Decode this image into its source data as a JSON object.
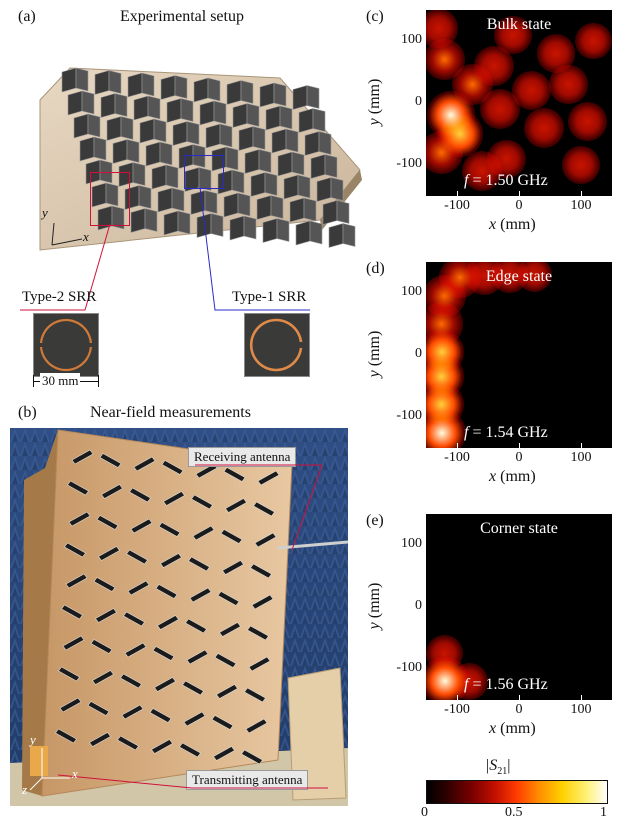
{
  "panel_a": {
    "label": "(a)",
    "title": "Experimental setup",
    "axis_y": "y",
    "axis_x": "x",
    "type2": {
      "label": "Type-2 SRR",
      "scale": "30 mm"
    },
    "type1": {
      "label": "Type-1 SRR"
    }
  },
  "panel_b": {
    "label": "(b)",
    "title": "Near-field measurements",
    "receiving": "Receiving antenna",
    "transmitting": "Transmitting antenna",
    "axis_y": "y",
    "axis_x": "x",
    "axis_z": "z"
  },
  "maps": [
    {
      "label": "(c)",
      "title": "Bulk state",
      "freq": "f = 1.50 GHz"
    },
    {
      "label": "(d)",
      "title": "Edge state",
      "freq": "f = 1.54 GHz"
    },
    {
      "label": "(e)",
      "title": "Corner state",
      "freq": "f = 1.56 GHz"
    }
  ],
  "chart_data": [
    {
      "type": "heatmap",
      "title": "Bulk state",
      "annotation": "f = 1.50 GHz",
      "xlabel": "x (mm)",
      "ylabel": "y (mm)",
      "x_ticks": [
        "-100",
        "0",
        "100"
      ],
      "y_ticks": [
        "100",
        "0",
        "-100"
      ],
      "xlim": [
        -150,
        150
      ],
      "ylim": [
        -150,
        150
      ],
      "colormap": "hot",
      "hotspots": [
        {
          "x": -110,
          "y": -20,
          "v": 1.0
        },
        {
          "x": -95,
          "y": -50,
          "v": 0.85
        },
        {
          "x": -125,
          "y": -80,
          "v": 0.7
        },
        {
          "x": -75,
          "y": 30,
          "v": 0.6
        },
        {
          "x": -120,
          "y": 70,
          "v": 0.55
        },
        {
          "x": -40,
          "y": 60,
          "v": 0.5
        },
        {
          "x": -30,
          "y": -10,
          "v": 0.5
        },
        {
          "x": 20,
          "y": 20,
          "v": 0.45
        },
        {
          "x": 40,
          "y": -40,
          "v": 0.5
        },
        {
          "x": -60,
          "y": -110,
          "v": 0.5
        },
        {
          "x": 80,
          "y": 30,
          "v": 0.4
        },
        {
          "x": 110,
          "y": -30,
          "v": 0.45
        },
        {
          "x": 60,
          "y": 80,
          "v": 0.4
        },
        {
          "x": -10,
          "y": 110,
          "v": 0.35
        },
        {
          "x": 120,
          "y": 100,
          "v": 0.3
        },
        {
          "x": 100,
          "y": -100,
          "v": 0.35
        },
        {
          "x": -20,
          "y": -90,
          "v": 0.4
        },
        {
          "x": -130,
          "y": 120,
          "v": 0.4
        }
      ]
    },
    {
      "type": "heatmap",
      "title": "Edge state",
      "annotation": "f = 1.54 GHz",
      "xlabel": "x (mm)",
      "ylabel": "y (mm)",
      "x_ticks": [
        "-100",
        "0",
        "100"
      ],
      "y_ticks": [
        "100",
        "0",
        "-100"
      ],
      "xlim": [
        -150,
        150
      ],
      "ylim": [
        -150,
        150
      ],
      "colormap": "hot",
      "hotspots": [
        {
          "x": -125,
          "y": -125,
          "v": 1.0
        },
        {
          "x": -125,
          "y": -80,
          "v": 0.85
        },
        {
          "x": -125,
          "y": -35,
          "v": 0.8
        },
        {
          "x": -125,
          "y": 5,
          "v": 0.75
        },
        {
          "x": -125,
          "y": 50,
          "v": 0.7
        },
        {
          "x": -120,
          "y": 95,
          "v": 0.65
        },
        {
          "x": -95,
          "y": 125,
          "v": 0.6
        },
        {
          "x": -55,
          "y": 128,
          "v": 0.45
        },
        {
          "x": -15,
          "y": 130,
          "v": 0.3
        },
        {
          "x": 25,
          "y": 130,
          "v": 0.2
        }
      ]
    },
    {
      "type": "heatmap",
      "title": "Corner state",
      "annotation": "f = 1.56 GHz",
      "xlabel": "x (mm)",
      "ylabel": "y (mm)",
      "x_ticks": [
        "-100",
        "0",
        "100"
      ],
      "y_ticks": [
        "100",
        "0",
        "-100"
      ],
      "xlim": [
        -150,
        150
      ],
      "ylim": [
        -150,
        150
      ],
      "colormap": "hot",
      "hotspots": [
        {
          "x": -120,
          "y": -120,
          "v": 1.0
        },
        {
          "x": -120,
          "y": -75,
          "v": 0.35
        },
        {
          "x": -80,
          "y": -120,
          "v": 0.3
        }
      ]
    }
  ],
  "colorbar": {
    "label": "|S21|",
    "ticks": [
      "0",
      "0.5",
      "1"
    ],
    "range": [
      0,
      1
    ],
    "colormap": "hot"
  }
}
